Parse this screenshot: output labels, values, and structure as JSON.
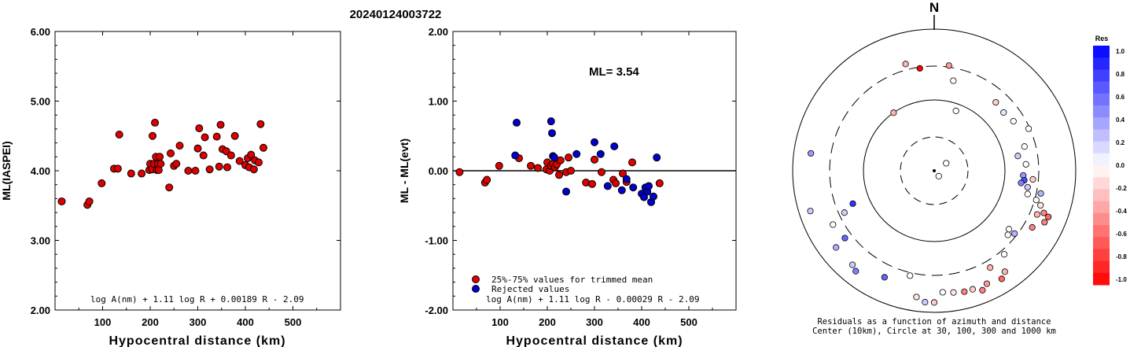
{
  "title": "20240124003722",
  "colors": {
    "accepted": "#dd0000",
    "rejected": "#0000cc",
    "axis": "#000000"
  },
  "chart_data": [
    {
      "type": "scatter",
      "ylabel": "ML(IASPEI)",
      "xlabel": "Hypocentral distance (km)",
      "xlim": [
        0,
        600
      ],
      "ylim": [
        2.0,
        6.0
      ],
      "xticks": [
        "100",
        "200",
        "300",
        "400",
        "500"
      ],
      "yticks": [
        "2.00",
        "3.00",
        "4.00",
        "5.00",
        "6.00"
      ],
      "formula": "log A(nm) + 1.11 log R + 0.00189 R - 2.09",
      "points": [
        [
          14,
          3.56
        ],
        [
          68,
          3.51
        ],
        [
          72,
          3.56
        ],
        [
          98,
          3.82
        ],
        [
          124,
          4.03
        ],
        [
          132,
          4.03
        ],
        [
          135,
          4.52
        ],
        [
          160,
          3.96
        ],
        [
          182,
          3.96
        ],
        [
          198,
          4.01
        ],
        [
          200,
          4.1
        ],
        [
          204,
          4.02
        ],
        [
          205,
          4.5
        ],
        [
          208,
          4.1
        ],
        [
          210,
          4.69
        ],
        [
          212,
          4.2
        ],
        [
          214,
          4.01
        ],
        [
          216,
          4.1
        ],
        [
          218,
          4.01
        ],
        [
          220,
          4.2
        ],
        [
          222,
          4.1
        ],
        [
          240,
          3.76
        ],
        [
          243,
          4.25
        ],
        [
          250,
          4.07
        ],
        [
          255,
          4.1
        ],
        [
          262,
          4.36
        ],
        [
          280,
          4.0
        ],
        [
          295,
          4.0
        ],
        [
          300,
          4.32
        ],
        [
          303,
          4.61
        ],
        [
          312,
          4.22
        ],
        [
          315,
          4.48
        ],
        [
          325,
          4.02
        ],
        [
          340,
          4.49
        ],
        [
          345,
          4.06
        ],
        [
          348,
          4.66
        ],
        [
          352,
          4.31
        ],
        [
          360,
          4.28
        ],
        [
          362,
          4.05
        ],
        [
          370,
          4.22
        ],
        [
          378,
          4.5
        ],
        [
          388,
          4.14
        ],
        [
          400,
          4.08
        ],
        [
          405,
          4.18
        ],
        [
          408,
          4.05
        ],
        [
          412,
          4.23
        ],
        [
          418,
          4.02
        ],
        [
          420,
          4.15
        ],
        [
          428,
          4.12
        ],
        [
          432,
          4.67
        ],
        [
          438,
          4.33
        ]
      ]
    },
    {
      "type": "scatter",
      "ylabel": "ML - ML(evt)",
      "xlabel": "Hypocentral distance (km)",
      "xlim": [
        0,
        600
      ],
      "ylim": [
        -2.0,
        2.0
      ],
      "xticks": [
        "100",
        "200",
        "300",
        "400",
        "500"
      ],
      "yticks": [
        "-2.00",
        "-1.00",
        "0.00",
        "1.00",
        "2.00"
      ],
      "ml_label": "ML= 3.54",
      "formula": "log A(nm) + 1.11 log R - 0.00029 R - 2.09",
      "legend": [
        "25%-75% values for trimmed mean",
        "Rejected values"
      ],
      "series": [
        {
          "name": "25%-75% values for trimmed mean",
          "points": [
            [
              14,
              -0.02
            ],
            [
              68,
              -0.17
            ],
            [
              72,
              -0.13
            ],
            [
              98,
              0.07
            ],
            [
              140,
              0.18
            ],
            [
              165,
              0.07
            ],
            [
              180,
              0.04
            ],
            [
              198,
              0.02
            ],
            [
              200,
              0.12
            ],
            [
              205,
              0.0
            ],
            [
              208,
              0.07
            ],
            [
              212,
              0.1
            ],
            [
              216,
              0.05
            ],
            [
              220,
              0.09
            ],
            [
              225,
              -0.06
            ],
            [
              228,
              0.15
            ],
            [
              240,
              -0.02
            ],
            [
              245,
              0.19
            ],
            [
              250,
              0.0
            ],
            [
              282,
              -0.17
            ],
            [
              295,
              -0.19
            ],
            [
              300,
              0.16
            ],
            [
              315,
              -0.02
            ],
            [
              340,
              -0.13
            ],
            [
              345,
              -0.18
            ],
            [
              360,
              -0.04
            ],
            [
              368,
              -0.16
            ],
            [
              380,
              0.12
            ],
            [
              438,
              -0.18
            ]
          ]
        },
        {
          "name": "Rejected values",
          "points": [
            [
              132,
              0.22
            ],
            [
              135,
              0.69
            ],
            [
              208,
              0.71
            ],
            [
              210,
              0.54
            ],
            [
              212,
              0.21
            ],
            [
              215,
              0.19
            ],
            [
              240,
              -0.3
            ],
            [
              262,
              0.24
            ],
            [
              300,
              0.41
            ],
            [
              313,
              0.24
            ],
            [
              328,
              -0.22
            ],
            [
              342,
              0.35
            ],
            [
              358,
              -0.28
            ],
            [
              368,
              -0.12
            ],
            [
              382,
              -0.24
            ],
            [
              400,
              -0.33
            ],
            [
              405,
              -0.38
            ],
            [
              408,
              -0.24
            ],
            [
              412,
              -0.3
            ],
            [
              415,
              -0.22
            ],
            [
              420,
              -0.45
            ],
            [
              425,
              -0.37
            ],
            [
              432,
              0.19
            ]
          ]
        }
      ]
    },
    {
      "type": "polar",
      "north_label": "N",
      "caption_line1": "Residuals as a function of azimuth and distance",
      "caption_line2": "Center (10km), Circle at 30, 100, 300 and 1000 km",
      "colorbar_title": "Res",
      "colorbar_ticks": [
        "1.0",
        "0.8",
        "0.6",
        "0.4",
        "0.2",
        "0.0",
        "-0.2",
        "-0.4",
        "-0.6",
        "-0.8",
        "-1.0"
      ],
      "rings_km": [
        30,
        100,
        300,
        1000
      ],
      "points": [
        {
          "az": 345,
          "r": 0.78,
          "res": -0.3
        },
        {
          "az": 352,
          "r": 0.73,
          "res": -1.0
        },
        {
          "az": 8,
          "r": 0.75,
          "res": -0.4
        },
        {
          "az": 12,
          "r": 0.65,
          "res": 0.0
        },
        {
          "az": 325,
          "r": 0.5,
          "res": -0.3
        },
        {
          "az": 20,
          "r": 0.45,
          "res": 0.0
        },
        {
          "az": 58,
          "r": 0.1,
          "res": 0.0
        },
        {
          "az": 140,
          "r": 0.05,
          "res": 0.0
        },
        {
          "az": 42,
          "r": 0.65,
          "res": -0.2
        },
        {
          "az": 50,
          "r": 0.64,
          "res": 0.1
        },
        {
          "az": 58,
          "r": 0.66,
          "res": 0.0
        },
        {
          "az": 66,
          "r": 0.73,
          "res": 0.0
        },
        {
          "az": 75,
          "r": 0.66,
          "res": 0.0
        },
        {
          "az": 80,
          "r": 0.6,
          "res": 0.2
        },
        {
          "az": 86,
          "r": 0.65,
          "res": 0.0
        },
        {
          "az": 95,
          "r": 0.7,
          "res": -0.2
        },
        {
          "az": 93,
          "r": 0.63,
          "res": 0.4
        },
        {
          "az": 96,
          "r": 0.64,
          "res": 0.7
        },
        {
          "az": 98,
          "r": 0.62,
          "res": 0.5
        },
        {
          "az": 100,
          "r": 0.67,
          "res": 0.2
        },
        {
          "az": 104,
          "r": 0.68,
          "res": 0.0
        },
        {
          "az": 106,
          "r": 0.75,
          "res": 0.0
        },
        {
          "az": 102,
          "r": 0.77,
          "res": 0.3
        },
        {
          "az": 108,
          "r": 0.79,
          "res": -0.1
        },
        {
          "az": 113,
          "r": 0.79,
          "res": -0.3
        },
        {
          "az": 111,
          "r": 0.83,
          "res": -0.5
        },
        {
          "az": 112,
          "r": 0.87,
          "res": -0.6
        },
        {
          "az": 115,
          "r": 0.86,
          "res": -0.5
        },
        {
          "az": 120,
          "r": 0.8,
          "res": -0.5
        },
        {
          "az": 128,
          "r": 0.67,
          "res": 0.0
        },
        {
          "az": 131,
          "r": 0.69,
          "res": 0.0
        },
        {
          "az": 128,
          "r": 0.72,
          "res": 0.3
        },
        {
          "az": 140,
          "r": 0.77,
          "res": 0.0
        },
        {
          "az": 145,
          "r": 0.87,
          "res": -0.3
        },
        {
          "az": 150,
          "r": 0.79,
          "res": -0.3
        },
        {
          "az": 148,
          "r": 0.9,
          "res": -0.6
        },
        {
          "az": 155,
          "r": 0.88,
          "res": -0.4
        },
        {
          "az": 158,
          "r": 0.91,
          "res": -0.5
        },
        {
          "az": 162,
          "r": 0.88,
          "res": -0.2
        },
        {
          "az": 166,
          "r": 0.88,
          "res": -0.5
        },
        {
          "az": 171,
          "r": 0.87,
          "res": -0.1
        },
        {
          "az": 176,
          "r": 0.86,
          "res": 0.0
        },
        {
          "az": 180,
          "r": 0.93,
          "res": -0.2
        },
        {
          "az": 184,
          "r": 0.93,
          "res": 0.2
        },
        {
          "az": 188,
          "r": 0.9,
          "res": -0.1
        },
        {
          "az": 193,
          "r": 0.76,
          "res": 0.0
        },
        {
          "az": 205,
          "r": 0.83,
          "res": 0.6
        },
        {
          "az": 218,
          "r": 0.9,
          "res": 0.5
        },
        {
          "az": 221,
          "r": 0.88,
          "res": 0.2
        },
        {
          "az": 233,
          "r": 0.79,
          "res": 0.6
        },
        {
          "az": 232,
          "r": 0.88,
          "res": 0.3
        },
        {
          "az": 242,
          "r": 0.81,
          "res": 0.0
        },
        {
          "az": 245,
          "r": 0.7,
          "res": 0.2
        },
        {
          "az": 248,
          "r": 0.62,
          "res": 0.8
        },
        {
          "az": 252,
          "r": 0.92,
          "res": 0.2
        },
        {
          "az": 278,
          "r": 0.88,
          "res": 0.4
        }
      ]
    }
  ]
}
